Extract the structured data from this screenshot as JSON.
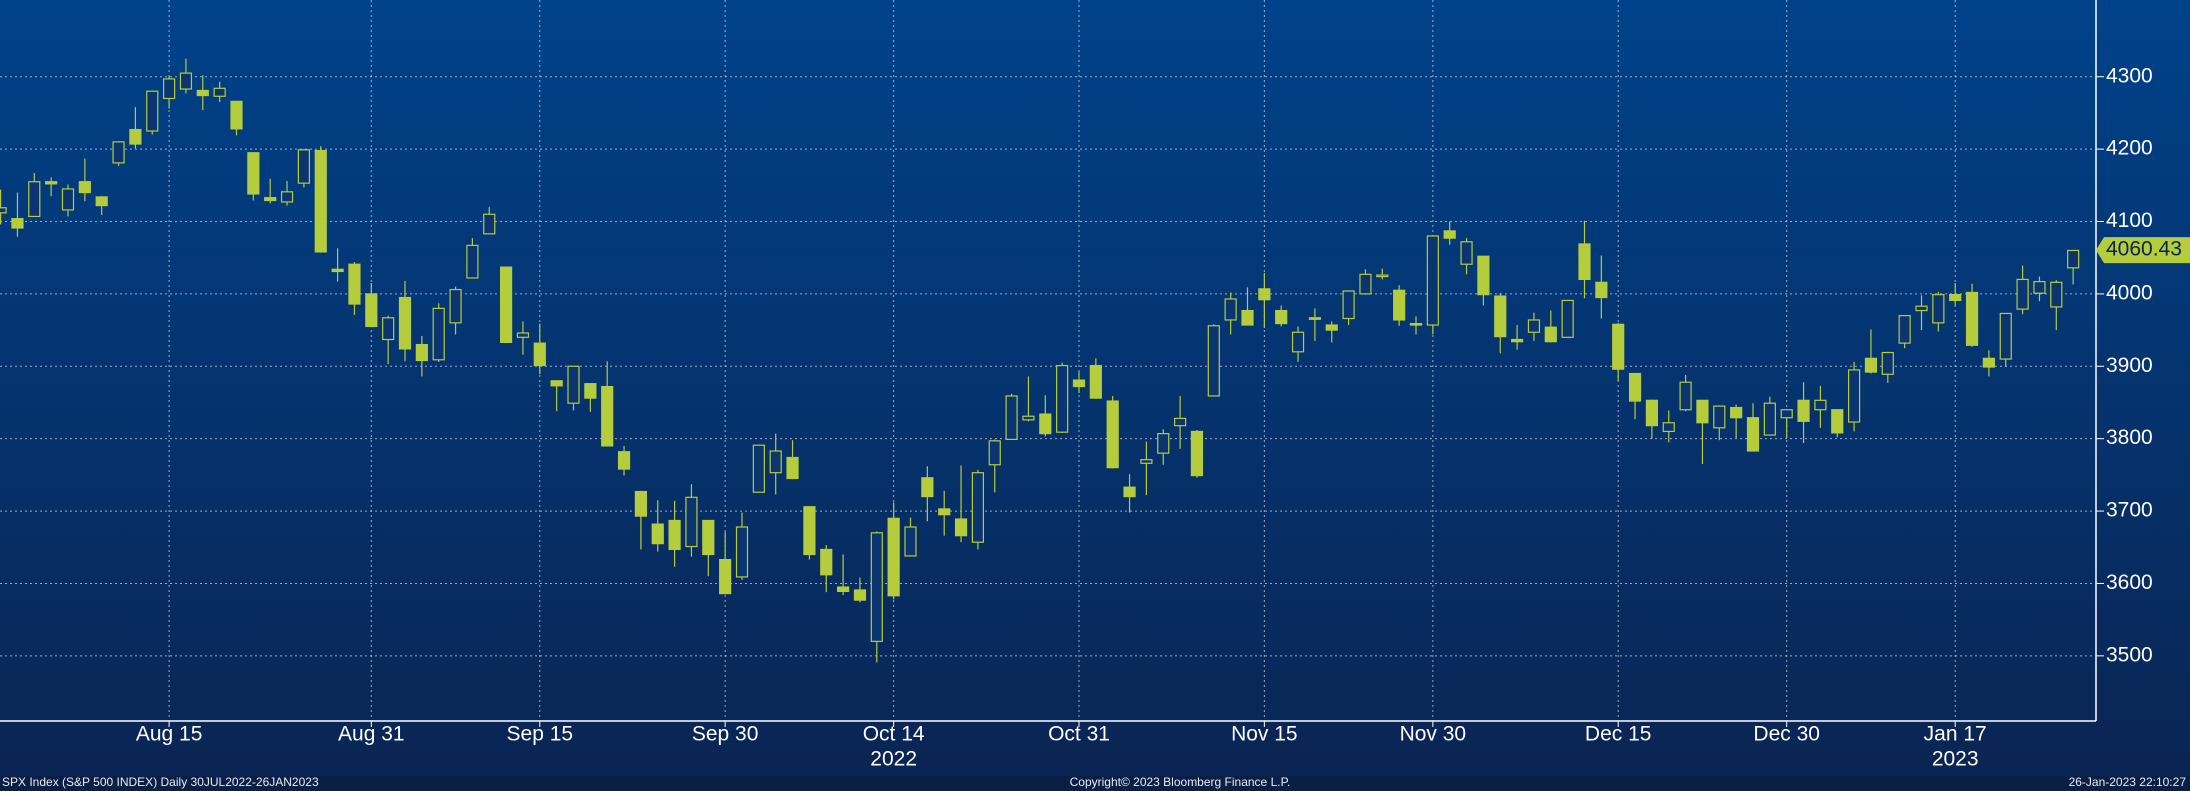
{
  "chart_data": {
    "type": "candlestick",
    "footer_left": "SPX Index (S&P 500 INDEX)  Daily 30JUL2022-26JAN2023",
    "footer_center": "Copyright© 2023 Bloomberg Finance L.P.",
    "footer_right": "26-Jan-2023 22:10:27",
    "color": "#b5cc3c",
    "grid": true,
    "last_price": 4060.43,
    "ylim": [
      3410,
      4406
    ],
    "yticks": [
      3500,
      3600,
      3700,
      3800,
      3900,
      4000,
      4100,
      4200,
      4300
    ],
    "categories": [
      null,
      null,
      null,
      null,
      null,
      null,
      null,
      null,
      null,
      null,
      "Aug 15",
      null,
      null,
      null,
      null,
      null,
      null,
      null,
      null,
      null,
      null,
      null,
      "Aug 31",
      null,
      null,
      null,
      null,
      null,
      null,
      null,
      null,
      null,
      "Sep 15",
      null,
      null,
      null,
      null,
      null,
      null,
      null,
      null,
      null,
      null,
      "Sep 30",
      null,
      null,
      null,
      null,
      null,
      null,
      null,
      null,
      null,
      "Oct 14",
      null,
      null,
      null,
      null,
      null,
      null,
      null,
      null,
      null,
      null,
      "Oct 31",
      null,
      null,
      null,
      null,
      null,
      null,
      null,
      null,
      null,
      null,
      "Nov 15",
      null,
      null,
      null,
      null,
      null,
      null,
      null,
      null,
      null,
      "Nov 30",
      null,
      null,
      null,
      null,
      null,
      null,
      null,
      null,
      null,
      null,
      "Dec 15",
      null,
      null,
      null,
      null,
      null,
      null,
      null,
      null,
      null,
      "Dec 30",
      null,
      null,
      null,
      null,
      null,
      null,
      null,
      null,
      null,
      "Jan 17",
      null,
      null,
      null,
      null,
      null,
      null,
      null
    ],
    "categories2": [
      null,
      null,
      null,
      null,
      null,
      null,
      null,
      null,
      null,
      null,
      null,
      null,
      null,
      null,
      null,
      null,
      null,
      null,
      null,
      null,
      null,
      null,
      null,
      null,
      null,
      null,
      null,
      null,
      null,
      null,
      null,
      null,
      null,
      null,
      null,
      null,
      null,
      null,
      null,
      null,
      null,
      null,
      null,
      null,
      null,
      null,
      null,
      null,
      null,
      null,
      null,
      null,
      null,
      "2022",
      null,
      null,
      null,
      null,
      null,
      null,
      null,
      null,
      null,
      null,
      null,
      null,
      null,
      null,
      null,
      null,
      null,
      null,
      null,
      null,
      null,
      null,
      null,
      null,
      null,
      null,
      null,
      null,
      null,
      null,
      null,
      null,
      null,
      null,
      null,
      null,
      null,
      null,
      null,
      null,
      null,
      null,
      null,
      null,
      null,
      null,
      null,
      null,
      null,
      null,
      null,
      null,
      null,
      null,
      null,
      null,
      null,
      null,
      null,
      null,
      null,
      null,
      "2023",
      null,
      null,
      null,
      null,
      null,
      null,
      null
    ],
    "open": [
      4112,
      4104,
      4107,
      4155,
      4116,
      4155,
      4134,
      4181,
      4227,
      4225,
      4270,
      4283,
      4281,
      4273,
      4266,
      4195,
      4133,
      4127,
      4153,
      4198,
      4034,
      4041,
      4000,
      3937,
      3995,
      3930,
      3909,
      3960,
      4022,
      4083,
      4037,
      3940,
      3932,
      3880,
      3849,
      3876,
      3872,
      3782,
      3727,
      3682,
      3687,
      3651,
      3687,
      3633,
      3609,
      3726,
      3753,
      3774,
      3706,
      3647,
      3595,
      3591,
      3520,
      3690,
      3638,
      3746,
      3703,
      3689,
      3657,
      3764,
      3799,
      3826,
      3834,
      3809,
      3881,
      3901,
      3852,
      3733,
      3766,
      3780,
      3818,
      3810,
      3859,
      3964,
      3977,
      4007,
      3977,
      3920,
      3967,
      3957,
      3966,
      4000,
      4024,
      4005,
      3959,
      3957,
      4087,
      4041,
      4052,
      3997,
      3937,
      3947,
      3954,
      3940,
      4069,
      4016,
      3958,
      3890,
      3853,
      3810,
      3840,
      3853,
      3815,
      3843,
      3829,
      3805,
      3829,
      3853,
      3840,
      3840,
      3823,
      3911,
      3889,
      3932,
      3977,
      3960,
      3999,
      4002,
      3911,
      3910,
      3979,
      4001,
      3982,
      4036
    ],
    "high": [
      4144,
      4140,
      4167,
      4161,
      4151,
      4187,
      4135,
      4211,
      4258,
      4280,
      4301,
      4325,
      4302,
      4293,
      4266,
      4195,
      4159,
      4156,
      4200,
      4204,
      4063,
      4044,
      4015,
      3970,
      4018,
      3942,
      3987,
      4010,
      4077,
      4120,
      4037,
      3962,
      3959,
      3880,
      3900,
      3876,
      3907,
      3790,
      3727,
      3715,
      3714,
      3737,
      3687,
      3671,
      3698,
      3791,
      3807,
      3798,
      3706,
      3653,
      3640,
      3608,
      3672,
      3712,
      3691,
      3762,
      3728,
      3763,
      3757,
      3799,
      3862,
      3886,
      3860,
      3905,
      3893,
      3911,
      3859,
      3751,
      3796,
      3813,
      3859,
      3812,
      3958,
      4002,
      4009,
      4029,
      3984,
      3955,
      3980,
      3962,
      4005,
      4034,
      4035,
      4012,
      3969,
      4080,
      4100,
      4077,
      4052,
      4001,
      3957,
      3974,
      3977,
      3991,
      4101,
      4053,
      3960,
      3890,
      3854,
      3839,
      3888,
      3853,
      3846,
      3847,
      3849,
      3858,
      3840,
      3878,
      3873,
      3840,
      3906,
      3951,
      3920,
      3970,
      3998,
      4003,
      4015,
      4014,
      3922,
      3973,
      4039,
      4024,
      4019,
      4060
    ],
    "low": [
      4096,
      4079,
      4107,
      4135,
      4107,
      4128,
      4109,
      4177,
      4201,
      4220,
      4256,
      4277,
      4254,
      4265,
      4219,
      4129,
      4125,
      4122,
      4147,
      4057,
      4017,
      3971,
      3954,
      3903,
      3907,
      3886,
      3906,
      3944,
      4022,
      4083,
      3932,
      3916,
      3889,
      3838,
      3839,
      3837,
      3789,
      3749,
      3647,
      3644,
      3623,
      3637,
      3610,
      3585,
      3605,
      3726,
      3723,
      3744,
      3633,
      3588,
      3584,
      3574,
      3491,
      3578,
      3638,
      3686,
      3666,
      3657,
      3647,
      3726,
      3799,
      3824,
      3803,
      3808,
      3863,
      3855,
      3759,
      3698,
      3722,
      3764,
      3786,
      3746,
      3859,
      3944,
      3957,
      3953,
      3955,
      3906,
      3935,
      3933,
      3957,
      3999,
      4020,
      3956,
      3944,
      3944,
      4068,
      4027,
      3984,
      3918,
      3923,
      3935,
      3933,
      3939,
      3994,
      3966,
      3880,
      3827,
      3800,
      3795,
      3838,
      3765,
      3798,
      3801,
      3783,
      3805,
      3801,
      3794,
      3815,
      3802,
      3810,
      3890,
      3877,
      3925,
      3950,
      3948,
      3984,
      3927,
      3886,
      3899,
      3972,
      3990,
      3950,
      4013
    ],
    "close": [
      4119,
      4091,
      4155,
      4152,
      4145,
      4140,
      4122,
      4210,
      4207,
      4280,
      4297,
      4305,
      4274,
      4284,
      4228,
      4138,
      4129,
      4141,
      4199,
      4058,
      4031,
      3986,
      3955,
      3967,
      3924,
      3908,
      3980,
      4006,
      4067,
      4110,
      3933,
      3946,
      3901,
      3873,
      3900,
      3856,
      3790,
      3758,
      3693,
      3655,
      3647,
      3719,
      3640,
      3586,
      3678,
      3791,
      3783,
      3745,
      3640,
      3612,
      3589,
      3577,
      3670,
      3583,
      3678,
      3720,
      3695,
      3666,
      3753,
      3797,
      3859,
      3831,
      3807,
      3901,
      3872,
      3856,
      3760,
      3720,
      3771,
      3807,
      3828,
      3749,
      3956,
      3993,
      3957,
      3992,
      3959,
      3947,
      3965,
      3950,
      4004,
      4027,
      4026,
      3964,
      3958,
      4080,
      4077,
      4072,
      3999,
      3941,
      3934,
      3964,
      3934,
      3991,
      4020,
      3995,
      3896,
      3852,
      3818,
      3822,
      3878,
      3822,
      3845,
      3829,
      3783,
      3849,
      3840,
      3824,
      3853,
      3808,
      3895,
      3892,
      3919,
      3970,
      3983,
      3999,
      3991,
      3929,
      3899,
      3973,
      4020,
      4017,
      4016,
      4060
    ]
  }
}
